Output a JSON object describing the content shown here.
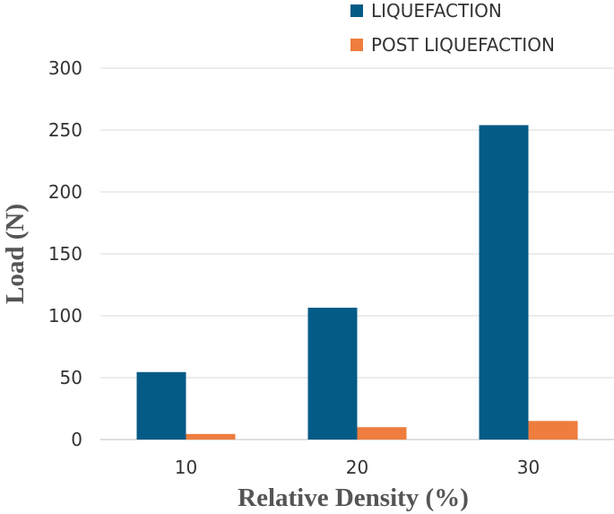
{
  "chart_data": {
    "type": "bar",
    "categories": [
      "10",
      "20",
      "30"
    ],
    "series": [
      {
        "name": "LIQUEFACTION",
        "values": [
          54.5,
          106.5,
          254
        ],
        "color": "#045b86"
      },
      {
        "name": "POST LIQUEFACTION",
        "values": [
          4.5,
          10,
          15
        ],
        "color": "#ee7d3e"
      }
    ],
    "xlabel": "Relative Density (%)",
    "ylabel": "Load (N)",
    "ylim": [
      0,
      300
    ],
    "yticks": [
      "0",
      "50",
      "100",
      "150",
      "200",
      "250",
      "300"
    ],
    "grid": true,
    "legend_position": "top-right"
  }
}
